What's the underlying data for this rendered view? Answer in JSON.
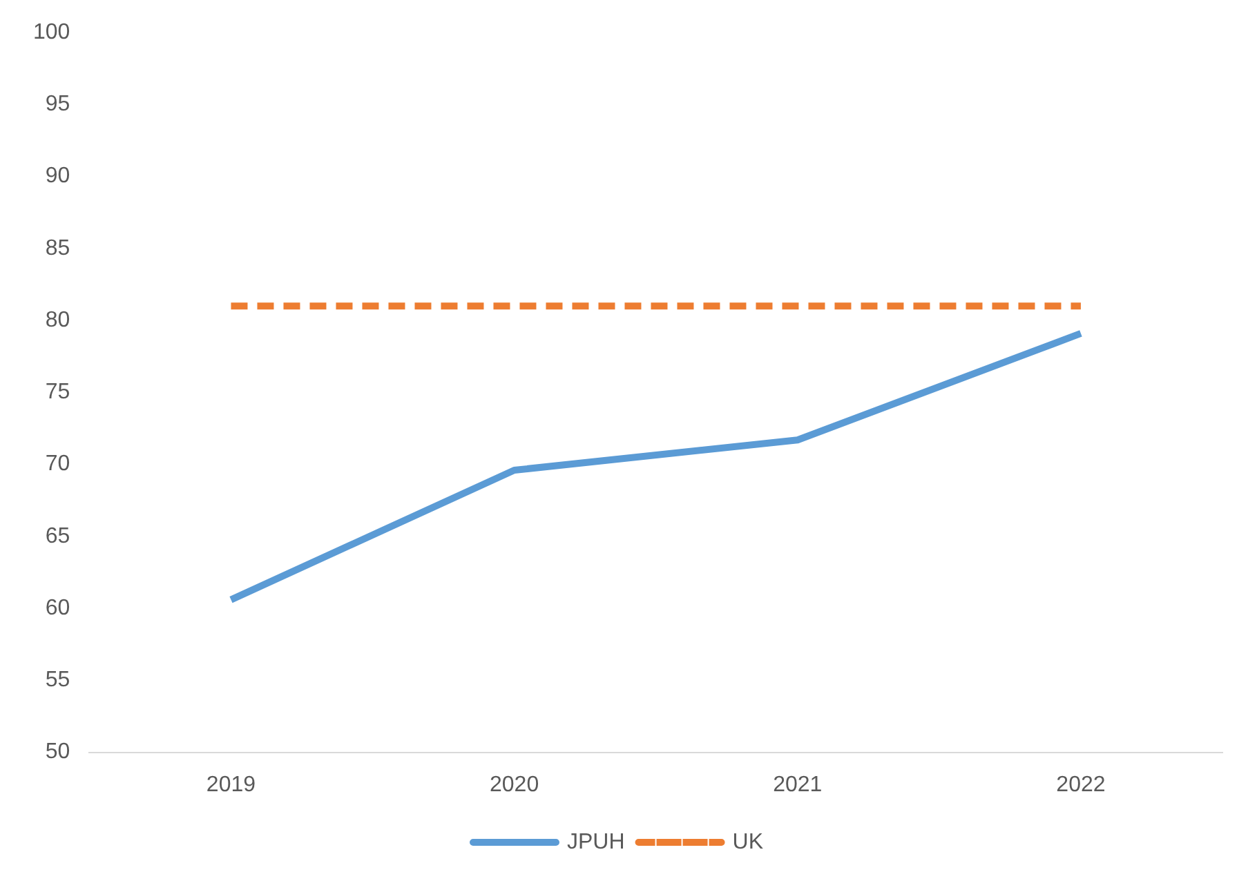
{
  "chart_data": {
    "type": "line",
    "categories": [
      "2019",
      "2020",
      "2021",
      "2022"
    ],
    "series": [
      {
        "name": "JPUH",
        "color": "#5b9bd5",
        "values": [
          60.6,
          69.6,
          71.7,
          79.1
        ],
        "line_style": "solid"
      },
      {
        "name": "UK",
        "color": "#ed7d31",
        "values": [
          81,
          81,
          81,
          81
        ],
        "line_style": "dashed"
      }
    ],
    "ylim": [
      50,
      100
    ],
    "yticks": [
      50,
      55,
      60,
      65,
      70,
      75,
      80,
      85,
      90,
      95,
      100
    ],
    "grid": false,
    "legend": "bottom",
    "marker": "none"
  }
}
